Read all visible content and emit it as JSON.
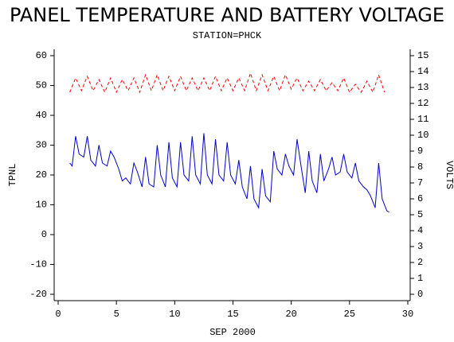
{
  "chart_data": {
    "type": "line",
    "title": "PANEL TEMPERATURE AND BATTERY VOLTAGE",
    "subtitle": "STATION=PHCK",
    "xlabel": "SEP 2000",
    "ylabel": "TPNL",
    "y2label": "VOLTS",
    "xlim": [
      0,
      30
    ],
    "xticks": [
      0,
      5,
      10,
      15,
      20,
      25,
      30
    ],
    "ylim": [
      -20,
      60
    ],
    "yticks": [
      -20,
      -10,
      0,
      10,
      20,
      30,
      40,
      50,
      60
    ],
    "y2lim": [
      0,
      15
    ],
    "y2ticks": [
      0,
      1,
      2,
      3,
      4,
      5,
      6,
      7,
      8,
      9,
      10,
      11,
      12,
      13,
      14,
      15
    ],
    "series": [
      {
        "color": "#0000cc",
        "line_style": "solid",
        "x": [
          1,
          1.2,
          1.5,
          1.8,
          2.2,
          2.5,
          2.8,
          3.2,
          3.5,
          3.8,
          4.2,
          4.5,
          4.8,
          5.2,
          5.5,
          5.8,
          6.2,
          6.5,
          6.8,
          7.2,
          7.5,
          7.8,
          8.2,
          8.5,
          8.8,
          9.2,
          9.5,
          9.8,
          10.2,
          10.5,
          10.8,
          11.2,
          11.5,
          11.8,
          12.2,
          12.5,
          12.8,
          13.2,
          13.5,
          13.8,
          14.2,
          14.5,
          14.8,
          15.2,
          15.5,
          15.8,
          16.2,
          16.5,
          16.8,
          17.2,
          17.5,
          17.8,
          18.2,
          18.5,
          18.8,
          19.2,
          19.5,
          19.8,
          20.2,
          20.5,
          20.8,
          21.2,
          21.5,
          21.8,
          22.2,
          22.5,
          22.8,
          23.2,
          23.5,
          23.8,
          24.2,
          24.5,
          24.8,
          25.2,
          25.5,
          25.8,
          26.2,
          26.5,
          26.8,
          27.2,
          27.5,
          27.8,
          28.2,
          28.4
        ],
        "values": [
          24,
          23,
          33,
          27,
          26,
          33,
          25,
          23,
          30,
          24,
          23,
          28,
          26,
          22,
          18,
          19,
          17,
          24,
          21,
          16,
          26,
          17,
          16,
          30,
          20,
          16,
          31,
          19,
          16,
          31,
          20,
          18,
          33,
          20,
          17,
          34,
          20,
          17,
          32,
          20,
          18,
          31,
          20,
          17,
          25,
          16,
          12,
          23,
          12,
          9,
          22,
          13,
          11,
          28,
          22,
          20,
          27,
          23,
          20,
          32,
          24,
          14,
          28,
          18,
          14,
          27,
          18,
          22,
          26,
          20,
          21,
          27,
          21,
          19,
          24,
          18,
          16,
          15,
          13,
          9,
          24,
          12,
          8,
          7.5
        ]
      },
      {
        "color": "#ff0000",
        "line_style": "dashed",
        "axis": "y2",
        "x": [
          1,
          1.5,
          2,
          2.5,
          3,
          3.5,
          4,
          4.5,
          5,
          5.5,
          6,
          6.5,
          7,
          7.5,
          8,
          8.5,
          9,
          9.5,
          10,
          10.5,
          11,
          11.5,
          12,
          12.5,
          13,
          13.5,
          14,
          14.5,
          15,
          15.5,
          16,
          16.5,
          17,
          17.5,
          18,
          18.5,
          19,
          19.5,
          20,
          20.5,
          21,
          21.5,
          22,
          22.5,
          23,
          23.5,
          24,
          24.5,
          25,
          25.5,
          26,
          26.5,
          27,
          27.5,
          28
        ],
        "values": [
          12.7,
          13.6,
          12.8,
          13.7,
          12.8,
          13.5,
          12.7,
          13.6,
          12.7,
          13.5,
          12.8,
          13.6,
          12.7,
          13.8,
          12.8,
          13.8,
          12.8,
          13.7,
          12.8,
          13.7,
          12.8,
          13.6,
          12.8,
          13.6,
          12.8,
          13.7,
          12.8,
          13.6,
          12.8,
          13.6,
          12.8,
          13.9,
          12.8,
          13.8,
          12.8,
          13.7,
          12.8,
          13.8,
          12.9,
          13.6,
          12.8,
          13.4,
          12.8,
          13.5,
          12.8,
          13.3,
          12.8,
          13.6,
          12.7,
          13.2,
          12.7,
          13.4,
          12.7,
          13.8,
          12.7
        ]
      }
    ]
  }
}
